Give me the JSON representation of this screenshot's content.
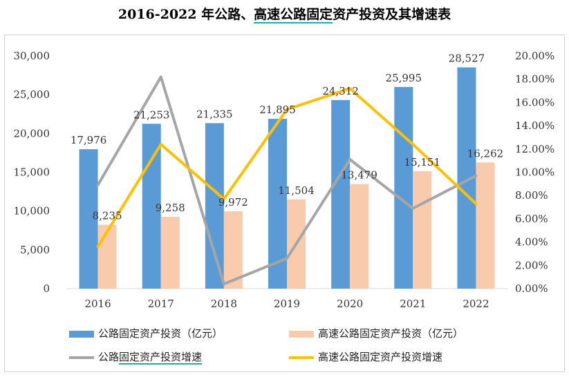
{
  "title": {
    "pre": "2016-2022 年公路、",
    "highlight": "高速公路固定",
    "post": "资产投资及其增速表"
  },
  "chart_data": {
    "type": "bar+line",
    "categories": [
      "2016",
      "2017",
      "2018",
      "2019",
      "2020",
      "2021",
      "2022"
    ],
    "series": [
      {
        "name": "公路固定资产投资（亿元）",
        "kind": "bar",
        "axis": "left",
        "color": "#5b9bd5",
        "values": [
          17976,
          21253,
          21335,
          21895,
          24312,
          25995,
          28527
        ],
        "labels": [
          "17,976",
          "21,253",
          "21,335",
          "21,895",
          "24,312",
          "25,995",
          "28,527"
        ]
      },
      {
        "name": "高速公路固定资产投资（亿元）",
        "kind": "bar",
        "axis": "left",
        "color": "#f8cbad",
        "values": [
          8235,
          9258,
          9972,
          11504,
          13479,
          15151,
          16262
        ],
        "labels": [
          "8,235",
          "9,258",
          "9,972",
          "11,504",
          "13,479",
          "15,151",
          "16,262"
        ]
      },
      {
        "name": "公路固定资产投资增速",
        "kind": "line",
        "axis": "right",
        "color": "#a5a5a5",
        "values": [
          8.9,
          18.2,
          0.4,
          2.6,
          11.1,
          6.9,
          9.7
        ]
      },
      {
        "name": "高速公路固定资产投资增速",
        "kind": "line",
        "axis": "right",
        "color": "#ffc000",
        "values": [
          3.6,
          12.4,
          7.7,
          15.4,
          17.2,
          12.4,
          7.3
        ]
      }
    ],
    "y_left": {
      "min": 0,
      "max": 30000,
      "step": 5000,
      "ticks": [
        "0",
        "5,000",
        "10,000",
        "15,000",
        "20,000",
        "25,000",
        "30,000"
      ]
    },
    "y_right": {
      "min": 0,
      "max": 20,
      "step": 2,
      "ticks": [
        "0.00%",
        "2.00%",
        "4.00%",
        "6.00%",
        "8.00%",
        "10.00%",
        "12.00%",
        "14.00%",
        "16.00%",
        "18.00%",
        "20.00%"
      ]
    },
    "legend_position": "bottom"
  },
  "legend": {
    "bar1": "公路固定资产投资（亿元）",
    "bar2": "高速公路固定资产投资（亿元）",
    "line1_pre": "公路",
    "line1_hl": "固定资产投资增速",
    "line2": "高速公路固定资产投资增速"
  },
  "colors": {
    "bar1": "#5b9bd5",
    "bar2": "#f8cbad",
    "line1": "#a5a5a5",
    "line2": "#ffc000"
  }
}
